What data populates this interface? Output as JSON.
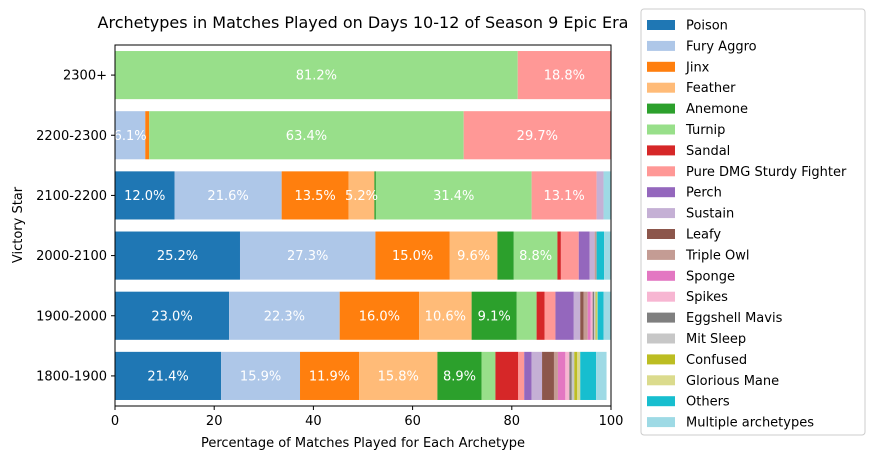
{
  "chart_data": {
    "type": "bar",
    "orientation": "horizontal",
    "stacked": true,
    "title": "Archetypes in Matches Played on Days 10-12 of Season 9 Epic Era",
    "xlabel": "Percentage of Matches Played for Each Archetype",
    "ylabel": "Victory Star",
    "xlim": [
      0,
      100
    ],
    "xticks": [
      "0",
      "20",
      "40",
      "60",
      "80",
      "100"
    ],
    "categories": [
      "2300+",
      "2200-2300",
      "2100-2200",
      "2000-2100",
      "1900-2000",
      "1800-1900"
    ],
    "legend_position": "outside-right",
    "series": [
      {
        "name": "Poison",
        "color": "#1f77b4",
        "values": [
          0,
          0,
          12.0,
          25.2,
          23.0,
          21.4
        ],
        "labels": [
          "",
          "",
          "12.0%",
          "25.2%",
          "23.0%",
          "21.4%"
        ]
      },
      {
        "name": "Fury Aggro",
        "color": "#aec7e8",
        "values": [
          0,
          6.1,
          21.6,
          27.3,
          22.3,
          15.9
        ],
        "labels": [
          "",
          "6.1%",
          "21.6%",
          "27.3%",
          "22.3%",
          "15.9%"
        ]
      },
      {
        "name": "Jinx",
        "color": "#ff7f0e",
        "values": [
          0,
          0.8,
          13.5,
          15.0,
          16.0,
          11.9
        ],
        "labels": [
          "",
          "",
          "13.5%",
          "15.0%",
          "16.0%",
          "11.9%"
        ]
      },
      {
        "name": "Feather",
        "color": "#ffbb78",
        "values": [
          0,
          0,
          5.2,
          9.6,
          10.6,
          15.8
        ],
        "labels": [
          "",
          "",
          "5.2%",
          "9.6%",
          "10.6%",
          "15.8%"
        ]
      },
      {
        "name": "Anemone",
        "color": "#2ca02c",
        "values": [
          0,
          0,
          0.3,
          3.3,
          9.1,
          8.9
        ],
        "labels": [
          "",
          "",
          "",
          "",
          "9.1%",
          "8.9%"
        ]
      },
      {
        "name": "Turnip",
        "color": "#98df8a",
        "values": [
          81.2,
          63.4,
          31.4,
          8.8,
          4.0,
          2.8
        ],
        "labels": [
          "81.2%",
          "63.4%",
          "31.4%",
          "8.8%",
          "",
          ""
        ]
      },
      {
        "name": "Sandal",
        "color": "#d62728",
        "values": [
          0,
          0,
          0,
          0.7,
          1.6,
          4.6
        ],
        "labels": [
          "",
          "",
          "",
          "",
          "",
          ""
        ]
      },
      {
        "name": "Pure DMG Sturdy Fighter",
        "color": "#ff9896",
        "values": [
          18.8,
          29.7,
          13.1,
          3.6,
          2.2,
          1.2
        ],
        "labels": [
          "18.8%",
          "29.7%",
          "13.1%",
          "",
          "",
          ""
        ]
      },
      {
        "name": "Perch",
        "color": "#9467bd",
        "values": [
          0,
          0,
          0,
          2.2,
          3.7,
          1.5
        ],
        "labels": [
          "",
          "",
          "",
          "",
          "",
          ""
        ]
      },
      {
        "name": "Sustain",
        "color": "#c5b0d5",
        "values": [
          0,
          0,
          1.4,
          1.0,
          1.3,
          2.1
        ],
        "labels": [
          "",
          "",
          "",
          "",
          "",
          ""
        ]
      },
      {
        "name": "Leafy",
        "color": "#8c564b",
        "values": [
          0,
          0,
          0,
          0,
          0.7,
          2.4
        ],
        "labels": [
          "",
          "",
          "",
          "",
          "",
          ""
        ]
      },
      {
        "name": "Triple Owl",
        "color": "#c49c94",
        "values": [
          0,
          0,
          0,
          0.4,
          0.8,
          0.8
        ],
        "labels": [
          "",
          "",
          "",
          "",
          "",
          ""
        ]
      },
      {
        "name": "Sponge",
        "color": "#e377c2",
        "values": [
          0,
          0,
          0,
          0,
          0.6,
          1.5
        ],
        "labels": [
          "",
          "",
          "",
          "",
          "",
          ""
        ]
      },
      {
        "name": "Spikes",
        "color": "#f7b6d2",
        "values": [
          0,
          0,
          0,
          0,
          0.4,
          0.8
        ],
        "labels": [
          "",
          "",
          "",
          "",
          "",
          ""
        ]
      },
      {
        "name": "Eggshell Mavis",
        "color": "#7f7f7f",
        "values": [
          0,
          0,
          0,
          0,
          0.3,
          0.5
        ],
        "labels": [
          "",
          "",
          "",
          "",
          "",
          ""
        ]
      },
      {
        "name": "Mit Sleep",
        "color": "#c7c7c7",
        "values": [
          0,
          0,
          0,
          0,
          0.3,
          0.5
        ],
        "labels": [
          "",
          "",
          "",
          "",
          "",
          ""
        ]
      },
      {
        "name": "Confused",
        "color": "#bcbd22",
        "values": [
          0,
          0,
          0,
          0,
          0.2,
          0.6
        ],
        "labels": [
          "",
          "",
          "",
          "",
          "",
          ""
        ]
      },
      {
        "name": "Glorious Mane",
        "color": "#dbdb8d",
        "values": [
          0,
          0,
          0,
          0,
          0.2,
          0.6
        ],
        "labels": [
          "",
          "",
          "",
          "",
          "",
          ""
        ]
      },
      {
        "name": "Others",
        "color": "#17becf",
        "values": [
          0,
          0,
          0,
          1.5,
          1.2,
          3.2
        ],
        "labels": [
          "",
          "",
          "",
          "",
          "",
          ""
        ]
      },
      {
        "name": "Multiple archetypes",
        "color": "#9edae5",
        "values": [
          0,
          0,
          1.5,
          1.4,
          1.5,
          2.1
        ],
        "labels": [
          "",
          "",
          "",
          "",
          "",
          ""
        ]
      }
    ]
  }
}
